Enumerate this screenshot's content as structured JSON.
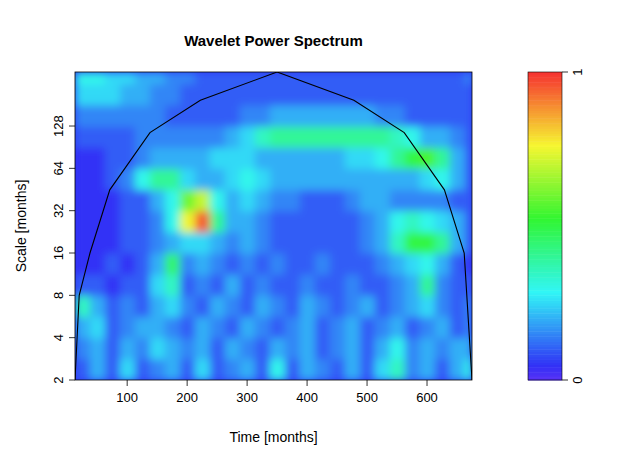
{
  "chart_data": {
    "type": "heatmap",
    "title": "Wavelet Power Spectrum",
    "x_label": "Time [months]",
    "y_label": "Scale [months]",
    "xlim": [
      13,
      675
    ],
    "ylim": [
      2,
      310
    ],
    "xticks": [
      100,
      200,
      300,
      400,
      500,
      600
    ],
    "yticks": [
      2,
      4,
      8,
      16,
      32,
      64,
      128
    ],
    "log": "y",
    "x_bins": [
      13,
      38,
      63,
      88,
      113,
      138,
      163,
      188,
      213,
      238,
      263,
      288,
      313,
      338,
      363,
      388,
      413,
      438,
      463,
      488,
      513,
      538,
      563,
      588,
      613,
      638,
      663,
      675
    ],
    "y_bins": [
      2,
      2.83,
      4,
      5.66,
      8,
      11.3,
      16,
      22.6,
      32,
      45.3,
      64,
      90.5,
      128,
      181,
      256,
      310
    ],
    "cells": [
      [
        0.1,
        0.2,
        0.1,
        0.25,
        0.1,
        0.15,
        0.2,
        0.1,
        0.25,
        0.1,
        0.15,
        0.2,
        0.1,
        0.3,
        0.1,
        0.2,
        0.15,
        0.1,
        0.2,
        0.1,
        0.25,
        0.35,
        0.15,
        0.2,
        0.1,
        0.2,
        0.3
      ],
      [
        0.15,
        0.2,
        0.1,
        0.2,
        0.15,
        0.25,
        0.2,
        0.15,
        0.2,
        0.1,
        0.2,
        0.15,
        0.1,
        0.2,
        0.15,
        0.2,
        0.1,
        0.15,
        0.2,
        0.1,
        0.2,
        0.3,
        0.15,
        0.2,
        0.15,
        0.2,
        0.2
      ],
      [
        0.2,
        0.25,
        0.1,
        0.15,
        0.2,
        0.2,
        0.15,
        0.1,
        0.2,
        0.15,
        0.1,
        0.2,
        0.15,
        0.1,
        0.15,
        0.2,
        0.1,
        0.15,
        0.2,
        0.1,
        0.15,
        0.2,
        0.1,
        0.15,
        0.2,
        0.1,
        0.15
      ],
      [
        0.35,
        0.2,
        0.1,
        0.15,
        0.1,
        0.2,
        0.25,
        0.15,
        0.1,
        0.2,
        0.15,
        0.1,
        0.2,
        0.15,
        0.1,
        0.2,
        0.15,
        0.1,
        0.15,
        0.2,
        0.1,
        0.15,
        0.2,
        0.25,
        0.15,
        0.1,
        0.15
      ],
      [
        0.1,
        0.1,
        0.05,
        0.1,
        0.1,
        0.25,
        0.35,
        0.1,
        0.15,
        0.1,
        0.2,
        0.1,
        0.15,
        0.1,
        0.1,
        0.15,
        0.1,
        0.1,
        0.15,
        0.1,
        0.1,
        0.15,
        0.2,
        0.4,
        0.15,
        0.1,
        0.1
      ],
      [
        0.05,
        0.05,
        0.1,
        0.05,
        0.1,
        0.2,
        0.45,
        0.15,
        0.2,
        0.15,
        0.1,
        0.15,
        0.1,
        0.15,
        0.1,
        0.1,
        0.15,
        0.1,
        0.1,
        0.1,
        0.15,
        0.2,
        0.25,
        0.3,
        0.2,
        0.1,
        0.05
      ],
      [
        0.05,
        0.05,
        0.05,
        0.1,
        0.1,
        0.15,
        0.2,
        0.25,
        0.25,
        0.2,
        0.15,
        0.2,
        0.15,
        0.1,
        0.1,
        0.1,
        0.1,
        0.1,
        0.1,
        0.15,
        0.2,
        0.35,
        0.5,
        0.5,
        0.4,
        0.2,
        0.1
      ],
      [
        0.05,
        0.05,
        0.05,
        0.1,
        0.1,
        0.15,
        0.3,
        0.75,
        0.95,
        0.4,
        0.2,
        0.2,
        0.15,
        0.1,
        0.1,
        0.1,
        0.1,
        0.1,
        0.1,
        0.15,
        0.2,
        0.3,
        0.35,
        0.3,
        0.25,
        0.2,
        0.1
      ],
      [
        0.05,
        0.05,
        0.05,
        0.1,
        0.1,
        0.2,
        0.3,
        0.6,
        0.7,
        0.3,
        0.2,
        0.25,
        0.2,
        0.15,
        0.15,
        0.1,
        0.1,
        0.1,
        0.15,
        0.2,
        0.2,
        0.15,
        0.15,
        0.15,
        0.15,
        0.1,
        0.1
      ],
      [
        0.05,
        0.05,
        0.1,
        0.15,
        0.3,
        0.4,
        0.4,
        0.25,
        0.2,
        0.2,
        0.25,
        0.3,
        0.25,
        0.2,
        0.2,
        0.2,
        0.2,
        0.2,
        0.2,
        0.2,
        0.2,
        0.2,
        0.2,
        0.25,
        0.3,
        0.2,
        0.1
      ],
      [
        0.05,
        0.05,
        0.1,
        0.1,
        0.15,
        0.2,
        0.2,
        0.2,
        0.2,
        0.25,
        0.25,
        0.25,
        0.2,
        0.2,
        0.2,
        0.2,
        0.2,
        0.2,
        0.25,
        0.25,
        0.3,
        0.4,
        0.5,
        0.55,
        0.4,
        0.2,
        0.1
      ],
      [
        0.1,
        0.1,
        0.1,
        0.1,
        0.15,
        0.15,
        0.15,
        0.15,
        0.15,
        0.15,
        0.2,
        0.25,
        0.35,
        0.4,
        0.4,
        0.4,
        0.4,
        0.4,
        0.4,
        0.4,
        0.4,
        0.35,
        0.3,
        0.2,
        0.2,
        0.15,
        0.1
      ],
      [
        0.15,
        0.15,
        0.15,
        0.15,
        0.15,
        0.15,
        0.1,
        0.1,
        0.1,
        0.1,
        0.1,
        0.15,
        0.15,
        0.2,
        0.2,
        0.2,
        0.2,
        0.2,
        0.2,
        0.2,
        0.15,
        0.15,
        0.1,
        0.1,
        0.1,
        0.1,
        0.1
      ],
      [
        0.25,
        0.25,
        0.25,
        0.2,
        0.2,
        0.15,
        0.15,
        0.1,
        0.1,
        0.1,
        0.1,
        0.1,
        0.1,
        0.1,
        0.1,
        0.1,
        0.1,
        0.1,
        0.1,
        0.1,
        0.1,
        0.1,
        0.1,
        0.1,
        0.1,
        0.1,
        0.1
      ],
      [
        0.3,
        0.3,
        0.25,
        0.25,
        0.2,
        0.2,
        0.15,
        0.15,
        0.1,
        0.1,
        0.1,
        0.1,
        0.1,
        0.1,
        0.1,
        0.1,
        0.1,
        0.1,
        0.1,
        0.1,
        0.1,
        0.1,
        0.1,
        0.1,
        0.1,
        0.1,
        0.15
      ]
    ],
    "colorbar": {
      "range": [
        0,
        1
      ],
      "ticks": [
        0,
        1
      ]
    },
    "line": {
      "x": [
        13,
        20,
        38,
        71,
        138,
        222,
        350,
        478,
        562,
        629,
        662,
        675
      ],
      "y": [
        2,
        8,
        16,
        45,
        115,
        195,
        310,
        195,
        115,
        45,
        16,
        2
      ],
      "color": "#000000"
    }
  }
}
